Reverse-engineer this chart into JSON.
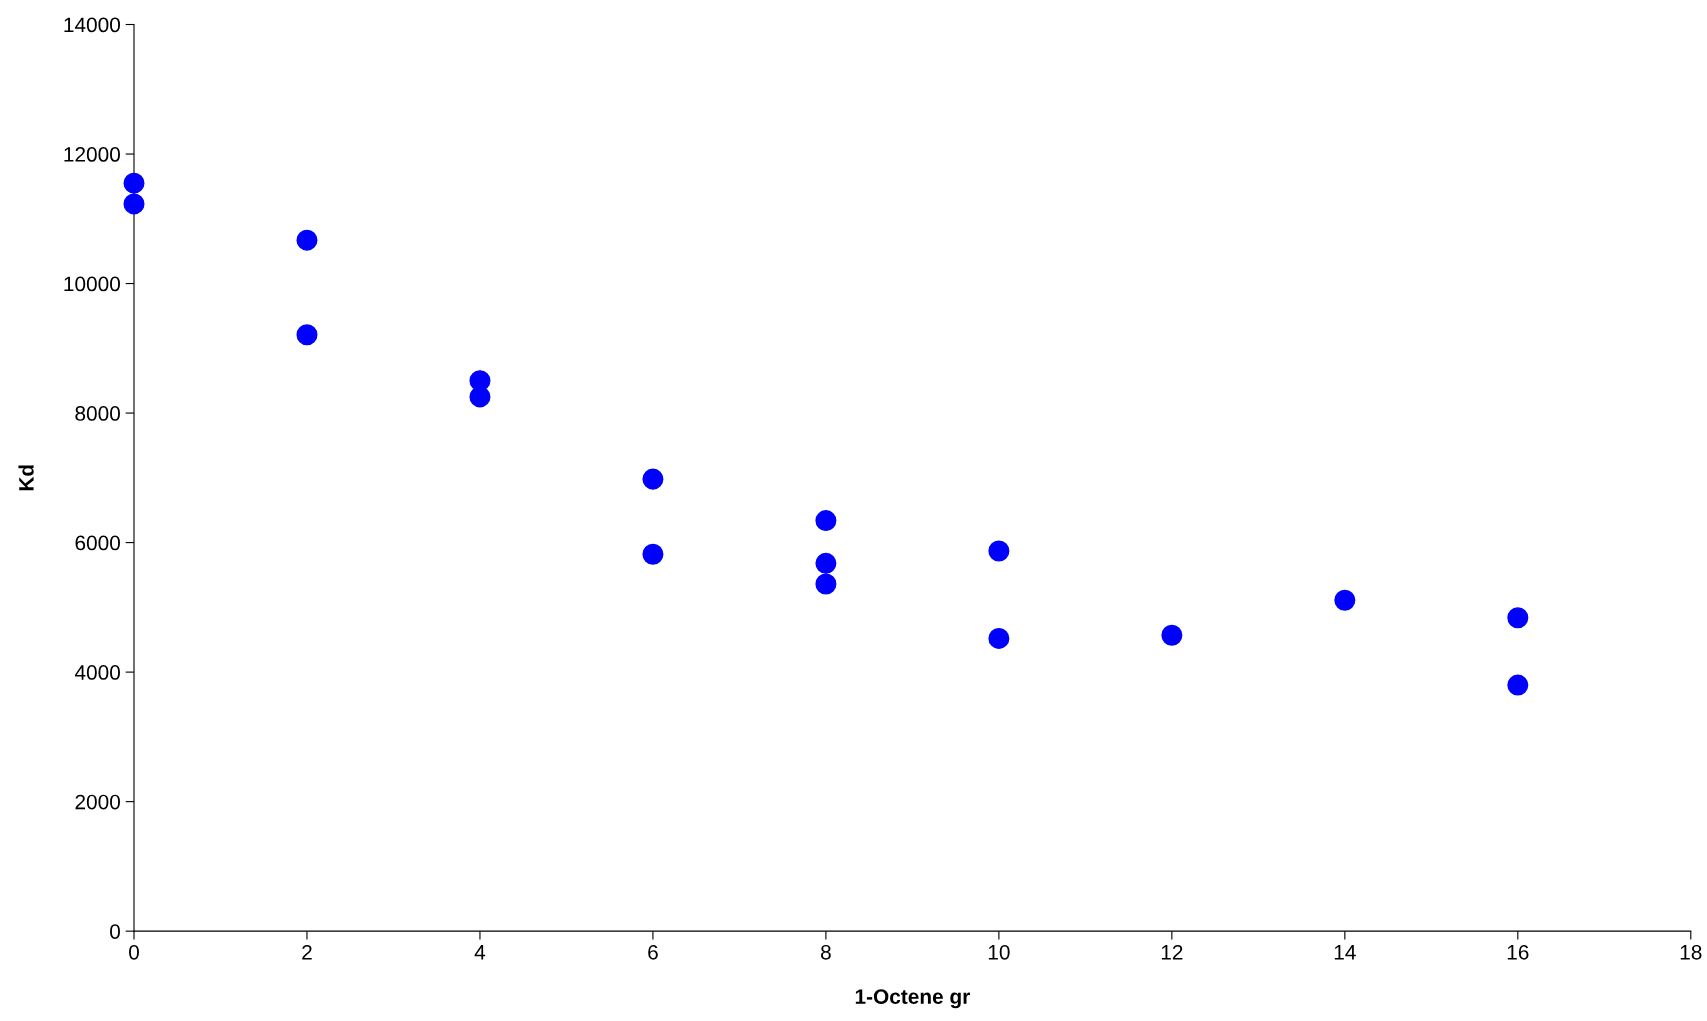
{
  "chart_data": {
    "type": "scatter",
    "xlabel": "1-Octene gr",
    "ylabel": "Kd",
    "x": [
      0,
      0,
      2,
      2,
      4,
      4,
      6,
      6,
      8,
      8,
      8,
      10,
      10,
      12,
      14,
      16,
      16
    ],
    "series": [
      {
        "color": "#0000ff",
        "values": [
          11550,
          11230,
          10670,
          9210,
          8500,
          8250,
          6980,
          5820,
          6340,
          5680,
          5360,
          5870,
          4520,
          4570,
          5110,
          4840,
          3800
        ]
      }
    ],
    "xlim": [
      0,
      18
    ],
    "xticks": [
      0,
      2,
      4,
      6,
      8,
      10,
      12,
      14,
      16,
      18
    ],
    "ylim": [
      0,
      14000
    ],
    "yticks": [
      0,
      2000,
      4000,
      6000,
      8000,
      10000,
      12000,
      14000
    ],
    "grid": false,
    "legend": false,
    "marker": "circle"
  }
}
